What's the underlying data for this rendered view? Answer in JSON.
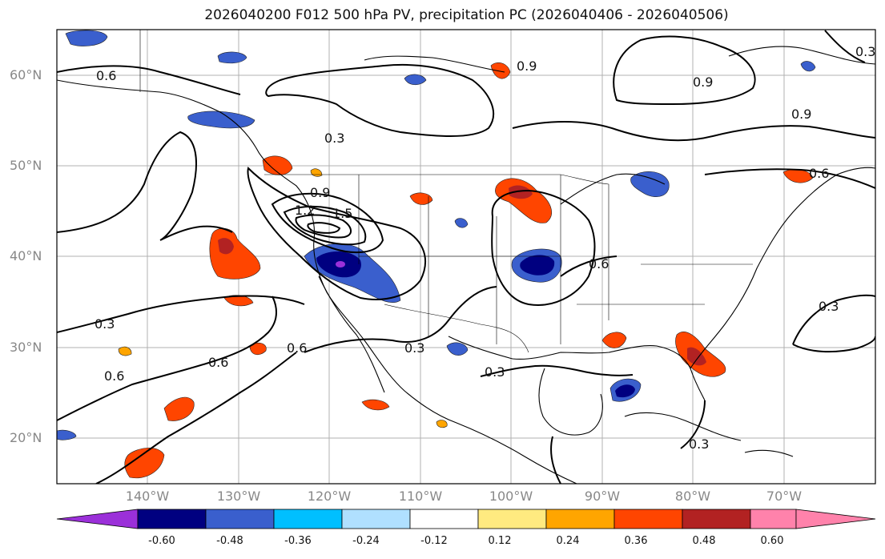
{
  "title": "2026040200 F012 500 hPa PV, precipitation PC (2026040406 - 2026040506)",
  "lat_labels": [
    "60°N",
    "50°N",
    "40°N",
    "30°N",
    "20°N"
  ],
  "lon_labels": [
    "140°W",
    "130°W",
    "120°W",
    "110°W",
    "100°W",
    "90°W",
    "80°W",
    "70°W"
  ],
  "contour_labels": [
    "0.6",
    "0.9",
    "0.9",
    "0.9",
    "0.3",
    "0.6",
    "0.9",
    "1.5",
    "1.2",
    "0.6",
    "0.3",
    "0.3",
    "0.3",
    "0.6",
    "0.6",
    "0.3",
    "0.3",
    "0.3",
    "0.6"
  ],
  "colorbar": {
    "ticks": [
      "-0.60",
      "-0.48",
      "-0.36",
      "-0.24",
      "-0.12",
      "0.12",
      "0.24",
      "0.36",
      "0.48",
      "0.60"
    ],
    "colors": [
      "#9b30d9",
      "#000080",
      "#3a5fcd",
      "#00bfff",
      "#b0e0ff",
      "#ffffff",
      "#ffea80",
      "#ffa500",
      "#ff4500",
      "#b22222",
      "#ff82ab"
    ]
  }
}
